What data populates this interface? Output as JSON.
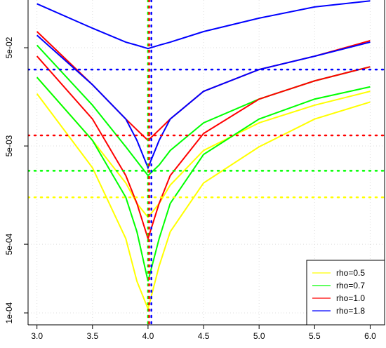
{
  "chart_data": {
    "type": "line",
    "log_y": true,
    "grid": true,
    "legend_position": "bottom-right",
    "x": [
      3.0,
      3.5,
      3.8,
      3.9,
      4.0,
      4.1,
      4.2,
      4.5,
      5.0,
      5.5,
      6.0
    ],
    "xlim": [
      2.92,
      6.13
    ],
    "ylim": [
      7.56e-05,
      0.153
    ],
    "xticks": [
      {
        "value": 3,
        "label": "3.0"
      },
      {
        "value": 3.5,
        "label": "3.5"
      },
      {
        "value": 4,
        "label": "4.0"
      },
      {
        "value": 4.5,
        "label": "4.5"
      },
      {
        "value": 5,
        "label": "5.0"
      },
      {
        "value": 5.5,
        "label": "5.5"
      },
      {
        "value": 6,
        "label": "6.0"
      }
    ],
    "yticks": [
      {
        "value": 0.0001,
        "label": "1e-04"
      },
      {
        "value": 0.0005,
        "label": "5e-04"
      },
      {
        "value": 0.005,
        "label": "5e-03"
      },
      {
        "value": 0.05,
        "label": "5e-02"
      }
    ],
    "series": [
      {
        "name": "rho=0.5",
        "color": "#ffff00",
        "curves": [
          [
            0.017,
            0.003,
            0.00057,
            0.00021,
            0.00011,
            0.0003,
            0.00067,
            0.0021,
            0.0049,
            0.0094,
            0.014
          ],
          [
            0.025,
            0.0057,
            0.0021,
            0.0013,
            0.00094,
            0.0013,
            0.002,
            0.0045,
            0.0086,
            0.013,
            0.018
          ]
        ]
      },
      {
        "name": "rho=0.7",
        "color": "#00ff00",
        "curves": [
          [
            0.025,
            0.0057,
            0.0015,
            0.00067,
            0.00021,
            0.00057,
            0.0013,
            0.0041,
            0.0094,
            0.015,
            0.02
          ],
          [
            0.053,
            0.013,
            0.0049,
            0.0035,
            0.0025,
            0.0032,
            0.0045,
            0.0086,
            0.015,
            0.023,
            0.032
          ]
        ]
      },
      {
        "name": "rho=1.0",
        "color": "#ff0000",
        "curves": [
          [
            0.041,
            0.0094,
            0.0025,
            0.0013,
            0.00057,
            0.0013,
            0.0025,
            0.0067,
            0.015,
            0.023,
            0.032
          ],
          [
            0.073,
            0.021,
            0.0094,
            0.0073,
            0.0057,
            0.0073,
            0.0094,
            0.018,
            0.03,
            0.041,
            0.059
          ]
        ]
      },
      {
        "name": "rho=1.8",
        "color": "#0000ff",
        "curves": [
          [
            0.067,
            0.021,
            0.0094,
            0.0057,
            0.003,
            0.0057,
            0.0094,
            0.018,
            0.03,
            0.041,
            0.057
          ],
          [
            0.14,
            0.079,
            0.057,
            0.053,
            0.049,
            0.053,
            0.057,
            0.073,
            0.1,
            0.13,
            0.15
          ]
        ]
      }
    ],
    "hlines": [
      {
        "value": 0.0015,
        "color": "#ffff00"
      },
      {
        "value": 0.0028,
        "color": "#00ff00"
      },
      {
        "value": 0.0064,
        "color": "#ff0000"
      },
      {
        "value": 0.03,
        "color": "#0000ff"
      }
    ],
    "vlines": [
      {
        "value": 4.0,
        "color": "#ffff00"
      },
      {
        "value": 4.0,
        "color": "#00ff00"
      },
      {
        "value": 4.01,
        "color": "#ff0000"
      },
      {
        "value": 4.03,
        "color": "#0000ff"
      }
    ]
  }
}
